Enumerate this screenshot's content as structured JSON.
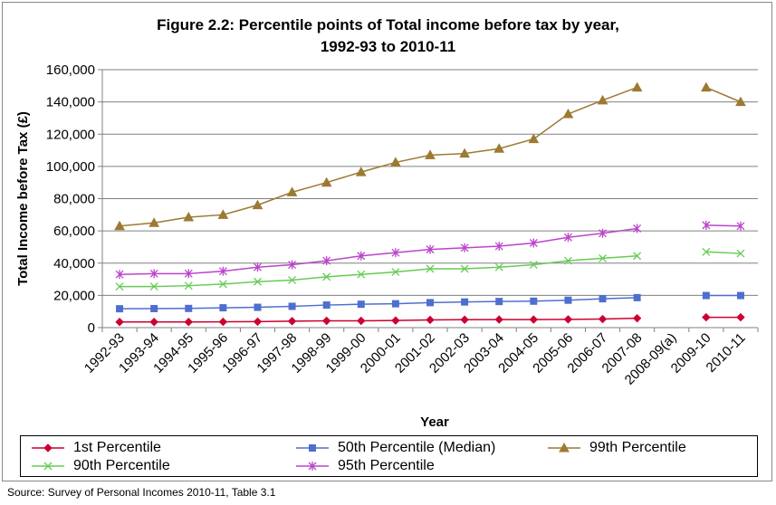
{
  "title_line1": "Figure 2.2: Percentile points of Total income before tax by year,",
  "title_line2": "1992-93 to 2010-11",
  "source": "Source: Survey of Personal Incomes 2010-11, Table 3.1",
  "chart_data": {
    "type": "line",
    "title": "Figure 2.2: Percentile points of Total income before tax by year, 1992-93 to 2010-11",
    "xlabel": "Year",
    "ylabel": "Total Income before Tax (£)",
    "ylim": [
      0,
      160000
    ],
    "yticks": [
      0,
      20000,
      40000,
      60000,
      80000,
      100000,
      120000,
      140000,
      160000
    ],
    "ytick_labels": [
      "0",
      "20,000",
      "40,000",
      "60,000",
      "80,000",
      "100,000",
      "120,000",
      "140,000",
      "160,000"
    ],
    "grid": "horizontal",
    "legend_position": "bottom",
    "categories": [
      "1992-93",
      "1993-94",
      "1994-95",
      "1995-96",
      "1996-97",
      "1997-98",
      "1998-99",
      "1999-00",
      "2000-01",
      "2001-02",
      "2002-03",
      "2003-04",
      "2004-05",
      "2005-06",
      "2006-07",
      "2007-08",
      "2008-09(a)",
      "2009-10",
      "2010-11"
    ],
    "series": [
      {
        "name": "1st Percentile",
        "color": "#cc0033",
        "marker": "diamond",
        "values": [
          3500,
          3500,
          3500,
          3600,
          3700,
          4000,
          4200,
          4200,
          4400,
          4800,
          4900,
          5000,
          5000,
          5100,
          5300,
          5800,
          null,
          6400,
          6400
        ]
      },
      {
        "name": "50th Percentile (Median)",
        "color": "#4f6fcf",
        "marker": "square",
        "values": [
          11700,
          11800,
          11900,
          12300,
          12600,
          13200,
          14000,
          14500,
          14800,
          15500,
          15900,
          16200,
          16400,
          17000,
          17900,
          18600,
          null,
          19900,
          19900
        ]
      },
      {
        "name": "99th Percentile",
        "color": "#9c7a32",
        "marker": "triangle",
        "values": [
          63000,
          65000,
          68500,
          70000,
          76000,
          84000,
          90000,
          96500,
          102500,
          107000,
          108000,
          111000,
          117000,
          132500,
          141000,
          149000,
          null,
          149000,
          140000
        ]
      },
      {
        "name": "90th Percentile",
        "color": "#66cc55",
        "marker": "x",
        "values": [
          25500,
          25500,
          26000,
          27000,
          28500,
          29500,
          31500,
          33000,
          34500,
          36500,
          36500,
          37500,
          39000,
          41500,
          43000,
          44500,
          null,
          47000,
          46000
        ]
      },
      {
        "name": "95th Percentile",
        "color": "#bb44cc",
        "marker": "star",
        "values": [
          33000,
          33500,
          33500,
          35000,
          37500,
          39000,
          41500,
          44500,
          46500,
          48500,
          49500,
          50500,
          52500,
          56000,
          58500,
          61500,
          null,
          63500,
          63000
        ]
      }
    ]
  }
}
